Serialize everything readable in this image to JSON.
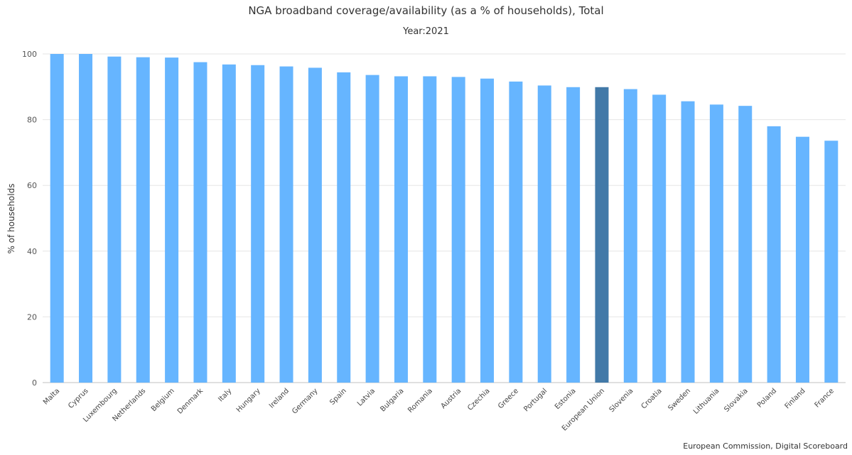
{
  "chart_data": {
    "type": "bar",
    "title": "NGA broadband coverage/availability (as a % of households), Total",
    "subtitle": "Year:2021",
    "ylabel": "% of households",
    "xlabel": "",
    "ylim": [
      0,
      100
    ],
    "yticks": [
      0,
      20,
      40,
      60,
      80,
      100
    ],
    "grid": true,
    "credits": "European Commission, Digital Scoreboard",
    "bar_color": "#66b5ff",
    "highlight_color": "#4279a8",
    "highlight_category": "European Union",
    "categories": [
      "Malta",
      "Cyprus",
      "Luxembourg",
      "Netherlands",
      "Belgium",
      "Denmark",
      "Italy",
      "Hungary",
      "Ireland",
      "Germany",
      "Spain",
      "Latvia",
      "Bulgaria",
      "Romania",
      "Austria",
      "Czechia",
      "Greece",
      "Portugal",
      "Estonia",
      "European Union",
      "Slovenia",
      "Croatia",
      "Sweden",
      "Lithuania",
      "Slovakia",
      "Poland",
      "Finland",
      "France"
    ],
    "values": [
      100,
      100,
      99.2,
      99.0,
      98.9,
      97.5,
      96.8,
      96.6,
      96.2,
      95.8,
      94.4,
      93.6,
      93.2,
      93.2,
      93.0,
      92.5,
      91.6,
      90.4,
      89.9,
      89.9,
      89.3,
      87.6,
      85.6,
      84.6,
      84.2,
      78.0,
      74.8,
      73.6
    ]
  }
}
